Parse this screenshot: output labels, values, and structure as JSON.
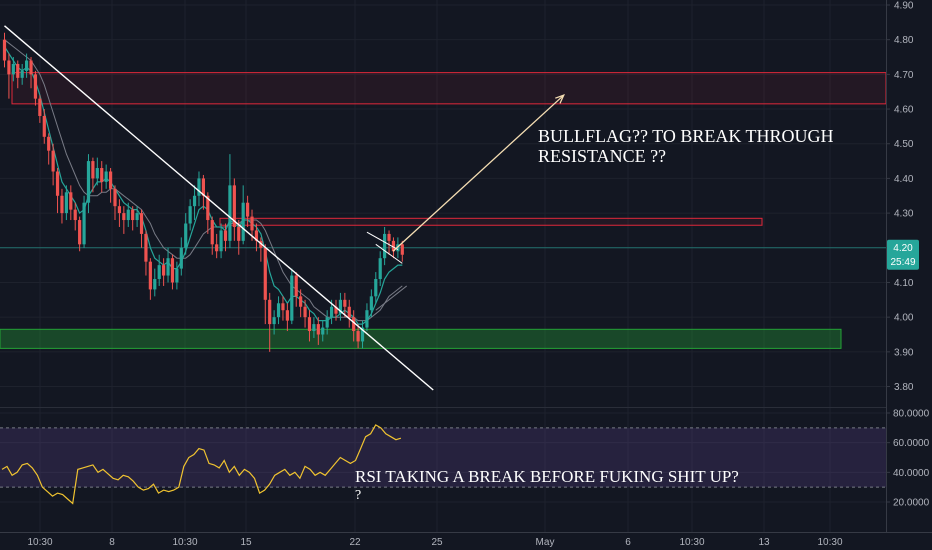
{
  "chart_data": {
    "type": "candlestick",
    "price_axis": {
      "ticks": [
        "4.90",
        "4.80",
        "4.70",
        "4.60",
        "4.50",
        "4.40",
        "4.30",
        "4.20",
        "4.10",
        "4.00",
        "3.90",
        "3.80"
      ],
      "ylim": [
        3.76,
        4.92
      ]
    },
    "rsi_axis": {
      "ticks": [
        "80.0000",
        "60.0000",
        "40.0000",
        "20.0000"
      ],
      "ylim": [
        6,
        86
      ],
      "band": [
        30,
        70
      ]
    },
    "time_axis": {
      "ticks": [
        "10:30",
        "8",
        "10:30",
        "15",
        "22",
        "25",
        "May",
        "6",
        "10:30",
        "13",
        "10:30"
      ]
    },
    "current_price": {
      "value": "4.20",
      "countdown": "25:49",
      "value_num": 4.2
    },
    "zones": [
      {
        "name": "resistance-upper",
        "y1": 4.615,
        "y2": 4.705,
        "color": "#e0283a"
      },
      {
        "name": "resistance-mid",
        "y1": 4.265,
        "y2": 4.285,
        "color": "#e0283a"
      },
      {
        "name": "support",
        "y1": 3.91,
        "y2": 3.965,
        "color": "#24a336"
      }
    ],
    "candles": [
      [
        4.8,
        4.74,
        4.82,
        4.72
      ],
      [
        4.74,
        4.7,
        4.76,
        4.63
      ],
      [
        4.7,
        4.73,
        4.75,
        4.68
      ],
      [
        4.73,
        4.69,
        4.74,
        4.66
      ],
      [
        4.69,
        4.71,
        4.73,
        4.67
      ],
      [
        4.71,
        4.74,
        4.76,
        4.69
      ],
      [
        4.74,
        4.7,
        4.75,
        4.66
      ],
      [
        4.7,
        4.63,
        4.71,
        4.61
      ],
      [
        4.63,
        4.58,
        4.64,
        4.56
      ],
      [
        4.58,
        4.52,
        4.6,
        4.5
      ],
      [
        4.52,
        4.48,
        4.53,
        4.44
      ],
      [
        4.48,
        4.42,
        4.5,
        4.38
      ],
      [
        4.42,
        4.35,
        4.43,
        4.3
      ],
      [
        4.35,
        4.3,
        4.37,
        4.27
      ],
      [
        4.3,
        4.36,
        4.38,
        4.28
      ],
      [
        4.36,
        4.31,
        4.38,
        4.28
      ],
      [
        4.31,
        4.28,
        4.33,
        4.25
      ],
      [
        4.28,
        4.21,
        4.29,
        4.19
      ],
      [
        4.21,
        4.33,
        4.35,
        4.2
      ],
      [
        4.33,
        4.45,
        4.47,
        4.3
      ],
      [
        4.45,
        4.4,
        4.46,
        4.36
      ],
      [
        4.4,
        4.43,
        4.46,
        4.38
      ],
      [
        4.43,
        4.39,
        4.45,
        4.36
      ],
      [
        4.39,
        4.42,
        4.44,
        4.37
      ],
      [
        4.42,
        4.37,
        4.43,
        4.33
      ],
      [
        4.37,
        4.32,
        4.38,
        4.28
      ],
      [
        4.32,
        4.3,
        4.34,
        4.26
      ],
      [
        4.3,
        4.28,
        4.32,
        4.24
      ],
      [
        4.28,
        4.31,
        4.33,
        4.26
      ],
      [
        4.31,
        4.28,
        4.32,
        4.25
      ],
      [
        4.28,
        4.3,
        4.32,
        4.26
      ],
      [
        4.3,
        4.24,
        4.31,
        4.2
      ],
      [
        4.24,
        4.16,
        4.25,
        4.12
      ],
      [
        4.16,
        4.08,
        4.17,
        4.05
      ],
      [
        4.08,
        4.11,
        4.14,
        4.06
      ],
      [
        4.11,
        4.15,
        4.18,
        4.09
      ],
      [
        4.15,
        4.12,
        4.17,
        4.09
      ],
      [
        4.12,
        4.17,
        4.2,
        4.1
      ],
      [
        4.17,
        4.1,
        4.18,
        4.08
      ],
      [
        4.1,
        4.14,
        4.16,
        4.08
      ],
      [
        4.14,
        4.2,
        4.23,
        4.12
      ],
      [
        4.2,
        4.27,
        4.3,
        4.18
      ],
      [
        4.27,
        4.32,
        4.34,
        4.25
      ],
      [
        4.32,
        4.35,
        4.38,
        4.28
      ],
      [
        4.35,
        4.4,
        4.42,
        4.32
      ],
      [
        4.4,
        4.35,
        4.41,
        4.31
      ],
      [
        4.35,
        4.28,
        4.36,
        4.24
      ],
      [
        4.28,
        4.21,
        4.29,
        4.18
      ],
      [
        4.21,
        4.19,
        4.24,
        4.17
      ],
      [
        4.19,
        4.25,
        4.27,
        4.17
      ],
      [
        4.25,
        4.22,
        4.27,
        4.19
      ],
      [
        4.22,
        4.38,
        4.47,
        4.2
      ],
      [
        4.38,
        4.26,
        4.4,
        4.22
      ],
      [
        4.26,
        4.22,
        4.28,
        4.18
      ],
      [
        4.22,
        4.33,
        4.38,
        4.21
      ],
      [
        4.33,
        4.29,
        4.35,
        4.26
      ],
      [
        4.29,
        4.25,
        4.31,
        4.22
      ],
      [
        4.25,
        4.22,
        4.27,
        4.19
      ],
      [
        4.22,
        4.2,
        4.23,
        4.16
      ],
      [
        4.2,
        4.05,
        4.21,
        3.98
      ],
      [
        4.05,
        3.98,
        4.07,
        3.9
      ],
      [
        3.98,
        4.0,
        4.02,
        3.95
      ],
      [
        4.0,
        4.04,
        4.06,
        3.98
      ],
      [
        4.04,
        4.02,
        4.06,
        3.99
      ],
      [
        4.02,
        3.99,
        4.04,
        3.96
      ],
      [
        3.99,
        4.12,
        4.14,
        3.98
      ],
      [
        4.12,
        4.06,
        4.13,
        4.03
      ],
      [
        4.06,
        4.03,
        4.08,
        4.0
      ],
      [
        4.03,
        4.0,
        4.05,
        3.97
      ],
      [
        4.0,
        3.96,
        4.02,
        3.93
      ],
      [
        3.96,
        3.98,
        4.0,
        3.94
      ],
      [
        3.98,
        3.95,
        4.0,
        3.92
      ],
      [
        3.95,
        3.97,
        3.99,
        3.93
      ],
      [
        3.97,
        4.0,
        4.02,
        3.95
      ],
      [
        4.0,
        4.03,
        4.05,
        3.98
      ],
      [
        4.03,
        4.01,
        4.05,
        3.99
      ],
      [
        4.01,
        4.05,
        4.07,
        3.99
      ],
      [
        4.05,
        4.03,
        4.07,
        4.0
      ],
      [
        4.03,
        4.0,
        4.05,
        3.97
      ],
      [
        4.0,
        3.96,
        4.02,
        3.93
      ],
      [
        3.96,
        3.93,
        3.98,
        3.91
      ],
      [
        3.93,
        3.97,
        3.99,
        3.91
      ],
      [
        3.97,
        4.02,
        4.04,
        3.96
      ],
      [
        4.02,
        4.06,
        4.08,
        4.0
      ],
      [
        4.06,
        4.11,
        4.13,
        4.04
      ],
      [
        4.11,
        4.17,
        4.19,
        4.09
      ],
      [
        4.17,
        4.24,
        4.26,
        4.15
      ],
      [
        4.24,
        4.22,
        4.25,
        4.18
      ],
      [
        4.22,
        4.19,
        4.23,
        4.17
      ],
      [
        4.19,
        4.21,
        4.23,
        4.17
      ],
      [
        4.21,
        4.18,
        4.22,
        4.16
      ]
    ],
    "ema_fast": [
      4.78,
      4.76,
      4.74,
      4.72,
      4.71,
      4.72,
      4.71,
      4.68,
      4.64,
      4.59,
      4.54,
      4.49,
      4.44,
      4.39,
      4.37,
      4.35,
      4.33,
      4.3,
      4.31,
      4.35,
      4.37,
      4.39,
      4.39,
      4.4,
      4.39,
      4.37,
      4.35,
      4.33,
      4.32,
      4.31,
      4.31,
      4.29,
      4.25,
      4.2,
      4.17,
      4.16,
      4.15,
      4.16,
      4.14,
      4.14,
      4.16,
      4.19,
      4.23,
      4.27,
      4.31,
      4.32,
      4.31,
      4.28,
      4.26,
      4.26,
      4.25,
      4.28,
      4.27,
      4.26,
      4.28,
      4.28,
      4.27,
      4.26,
      4.24,
      4.19,
      4.13,
      4.09,
      4.08,
      4.06,
      4.04,
      4.06,
      4.06,
      4.05,
      4.04,
      4.02,
      4.01,
      3.99,
      3.99,
      3.99,
      4.0,
      4.0,
      4.01,
      4.02,
      4.01,
      4.0,
      3.98,
      3.98,
      3.99,
      4.01,
      4.04,
      4.07,
      4.11,
      4.13,
      4.14,
      4.15,
      4.15
    ],
    "sma_slow": [
      4.8,
      4.79,
      4.78,
      4.77,
      4.76,
      4.75,
      4.74,
      4.72,
      4.7,
      4.67,
      4.63,
      4.59,
      4.55,
      4.51,
      4.47,
      4.44,
      4.41,
      4.38,
      4.36,
      4.35,
      4.35,
      4.35,
      4.36,
      4.36,
      4.37,
      4.37,
      4.36,
      4.35,
      4.34,
      4.33,
      4.32,
      4.31,
      4.29,
      4.27,
      4.24,
      4.22,
      4.2,
      4.19,
      4.18,
      4.17,
      4.17,
      4.17,
      4.18,
      4.2,
      4.22,
      4.24,
      4.25,
      4.26,
      4.26,
      4.26,
      4.26,
      4.27,
      4.27,
      4.27,
      4.28,
      4.28,
      4.28,
      4.28,
      4.27,
      4.25,
      4.22,
      4.19,
      4.16,
      4.13,
      4.11,
      4.09,
      4.08,
      4.07,
      4.06,
      4.05,
      4.03,
      4.02,
      4.01,
      4.0,
      4.0,
      4.0,
      4.0,
      4.0,
      4.0,
      4.0,
      3.99,
      3.99,
      3.99,
      4.0,
      4.01,
      4.02,
      4.04,
      4.06,
      4.07,
      4.08,
      4.09
    ],
    "rsi": [
      42,
      44,
      38,
      40,
      45,
      46,
      43,
      38,
      30,
      27,
      24,
      26,
      25,
      22,
      19,
      42,
      43,
      44,
      45,
      40,
      42,
      39,
      36,
      35,
      38,
      37,
      34,
      30,
      28,
      29,
      32,
      26,
      28,
      27,
      28,
      30,
      44,
      50,
      52,
      56,
      55,
      46,
      45,
      43,
      48,
      40,
      44,
      38,
      42,
      40,
      36,
      26,
      28,
      32,
      38,
      40,
      42,
      38,
      40,
      36,
      44,
      42,
      38,
      40,
      38,
      42,
      46,
      50,
      48,
      46,
      48,
      56,
      64,
      66,
      72,
      70,
      66,
      64,
      62,
      63
    ],
    "trendline": {
      "start": [
        0,
        4.84
      ],
      "end": [
        97,
        3.79
      ]
    },
    "bull_flag": {
      "upper": {
        "start": [
          82,
          4.245
        ],
        "end": [
          89,
          4.195
        ]
      },
      "lower": {
        "start": [
          84,
          4.21
        ],
        "end": [
          90,
          4.155
        ]
      },
      "ma_tail": {
        "start": [
          84,
          4.02
        ],
        "end": [
          91,
          4.09
        ]
      }
    },
    "projection": {
      "start": [
        87,
        4.19
      ],
      "end": [
        122,
        4.64
      ]
    },
    "annotations": [
      {
        "id": "bullflag",
        "lines": [
          "BULLFLAG?? TO BREAK THROUGH",
          "RESISTANCE ??"
        ]
      },
      {
        "id": "rsi",
        "lines": [
          "RSI TAKING A BREAK BEFORE FUKING SHIT UP?",
          "?"
        ]
      }
    ]
  }
}
